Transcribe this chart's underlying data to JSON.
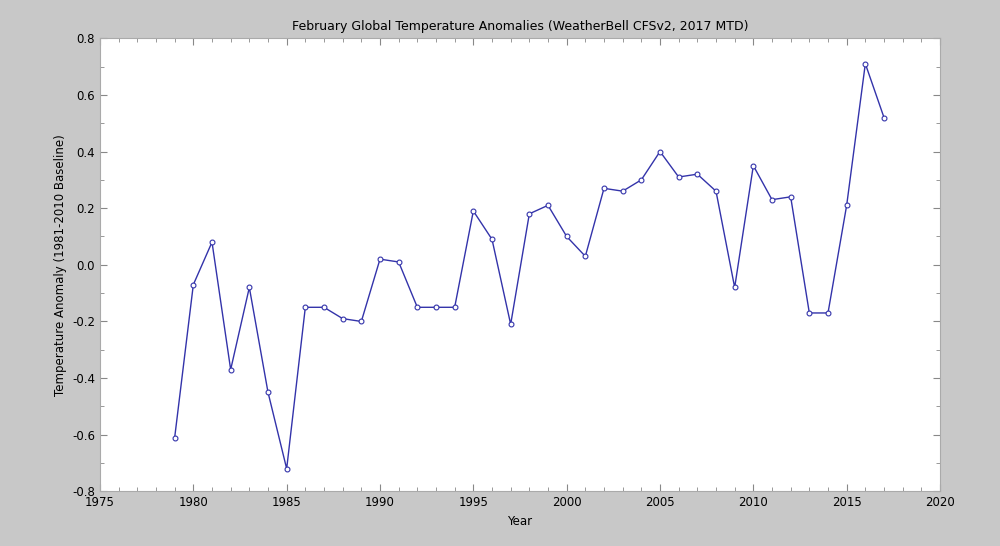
{
  "title": "February Global Temperature Anomalies (WeatherBell CFSv2, 2017 MTD)",
  "xlabel": "Year",
  "ylabel": "Temperature Anomaly (1981-2010 Baseline)",
  "xlim": [
    1975,
    2020
  ],
  "ylim": [
    -0.8,
    0.8
  ],
  "xticks": [
    1975,
    1980,
    1985,
    1990,
    1995,
    2000,
    2005,
    2010,
    2015,
    2020
  ],
  "yticks": [
    -0.8,
    -0.6,
    -0.4,
    -0.2,
    0.0,
    0.2,
    0.4,
    0.6,
    0.8
  ],
  "years": [
    1979,
    1980,
    1981,
    1982,
    1983,
    1984,
    1985,
    1986,
    1987,
    1988,
    1989,
    1990,
    1991,
    1992,
    1993,
    1994,
    1995,
    1996,
    1997,
    1998,
    1999,
    2000,
    2001,
    2002,
    2003,
    2004,
    2005,
    2006,
    2007,
    2008,
    2009,
    2010,
    2011,
    2012,
    2013,
    2014,
    2015,
    2016,
    2017
  ],
  "values": [
    -0.61,
    -0.07,
    0.08,
    -0.37,
    -0.08,
    -0.45,
    -0.72,
    -0.15,
    -0.15,
    -0.19,
    -0.2,
    0.02,
    0.01,
    -0.15,
    -0.15,
    -0.15,
    0.19,
    0.09,
    -0.21,
    0.18,
    0.21,
    0.1,
    0.03,
    0.27,
    0.26,
    0.3,
    0.4,
    0.31,
    0.32,
    0.26,
    -0.08,
    0.35,
    0.23,
    0.24,
    -0.17,
    -0.17,
    0.21,
    0.71,
    0.52
  ],
  "line_color": "#3333aa",
  "marker": "o",
  "marker_size": 3.5,
  "linewidth": 1.0,
  "fig_bg_color": "#c8c8c8",
  "plot_bg_color": "#ffffff",
  "title_fontsize": 9,
  "label_fontsize": 8.5,
  "tick_fontsize": 8.5,
  "spine_color": "#aaaaaa",
  "tick_color": "#888888"
}
